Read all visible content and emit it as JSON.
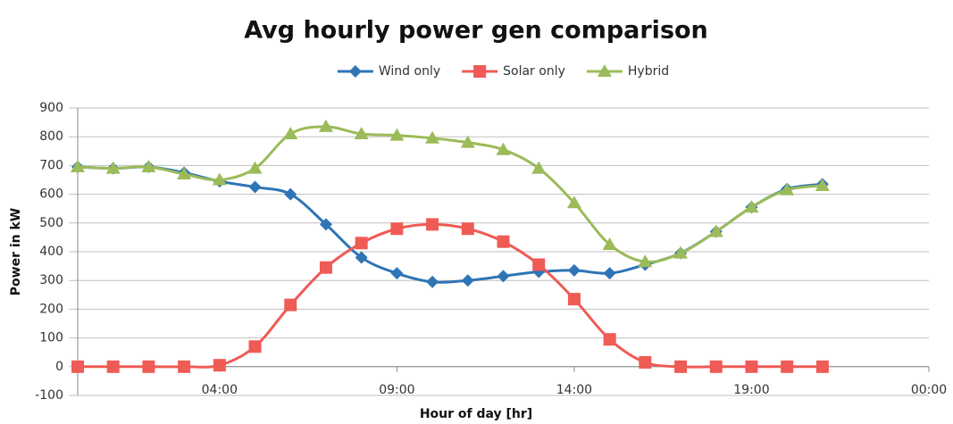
{
  "chart_data": {
    "type": "line",
    "title": "Avg hourly power gen comparison",
    "x_label": "Hour of day [hr]",
    "y_label": "Power in kW",
    "x": [
      0,
      1,
      2,
      3,
      4,
      5,
      6,
      7,
      8,
      9,
      10,
      11,
      12,
      13,
      14,
      15,
      16,
      17,
      18,
      19,
      20,
      21
    ],
    "series": [
      {
        "name": "Wind only",
        "color": "#2e75b6",
        "marker": "diamond",
        "values": [
          695,
          690,
          695,
          675,
          645,
          625,
          600,
          495,
          380,
          325,
          295,
          300,
          315,
          330,
          335,
          325,
          355,
          395,
          470,
          555,
          618,
          635
        ]
      },
      {
        "name": "Solar only",
        "color": "#ef5b55",
        "marker": "square",
        "values": [
          0,
          0,
          0,
          0,
          5,
          70,
          215,
          345,
          430,
          480,
          495,
          480,
          435,
          355,
          235,
          95,
          15,
          0,
          0,
          0,
          0,
          0
        ]
      },
      {
        "name": "Hybrid",
        "color": "#9bbb59",
        "marker": "triangle",
        "values": [
          695,
          690,
          695,
          670,
          650,
          690,
          810,
          835,
          810,
          805,
          795,
          780,
          755,
          690,
          570,
          425,
          365,
          395,
          470,
          555,
          615,
          630
        ]
      }
    ],
    "xlim": [
      0,
      24
    ],
    "xticks": [
      {
        "value": 4,
        "label": "04:00"
      },
      {
        "value": 9,
        "label": "09:00"
      },
      {
        "value": 14,
        "label": "14:00"
      },
      {
        "value": 19,
        "label": "19:00"
      },
      {
        "value": 24,
        "label": "00:00"
      }
    ],
    "ylim": [
      -100,
      900
    ],
    "yticks": [
      -100,
      0,
      100,
      200,
      300,
      400,
      500,
      600,
      700,
      800,
      900
    ],
    "grid": true,
    "legend": "top"
  }
}
